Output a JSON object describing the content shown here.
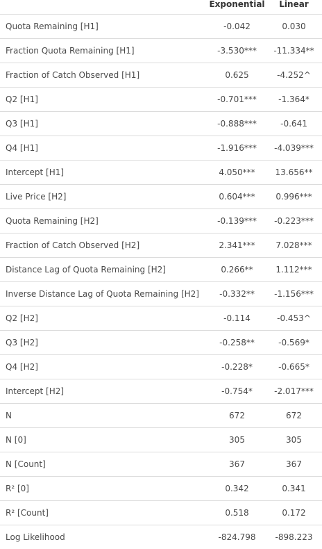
{
  "table": {
    "headers": [
      "",
      "Exponential",
      "Linear"
    ],
    "rows": [
      {
        "label": "Quota Remaining [H1]",
        "exponential": "-0.042",
        "linear": "0.030"
      },
      {
        "label": "Fraction Quota Remaining [H1]",
        "exponential": "-3.530***",
        "linear": "-11.334**"
      },
      {
        "label": "Fraction of Catch Observed [H1]",
        "exponential": "0.625",
        "linear": "-4.252^"
      },
      {
        "label": "Q2 [H1]",
        "exponential": "-0.701***",
        "linear": "-1.364*"
      },
      {
        "label": "Q3 [H1]",
        "exponential": "-0.888***",
        "linear": "-0.641"
      },
      {
        "label": "Q4 [H1]",
        "exponential": "-1.916***",
        "linear": "-4.039***"
      },
      {
        "label": "Intercept [H1]",
        "exponential": "4.050***",
        "linear": "13.656**"
      },
      {
        "label": "Live Price [H2]",
        "exponential": "0.604***",
        "linear": "0.996***"
      },
      {
        "label": "Quota Remaining [H2]",
        "exponential": "-0.139***",
        "linear": "-0.223***"
      },
      {
        "label": "Fraction of Catch Observed [H2]",
        "exponential": "2.341***",
        "linear": "7.028***"
      },
      {
        "label": "Distance Lag of Quota Remaining [H2]",
        "exponential": "0.266**",
        "linear": "1.112***"
      },
      {
        "label": "Inverse Distance Lag of Quota Remaining [H2]",
        "exponential": "-0.332**",
        "linear": "-1.156***"
      },
      {
        "label": "Q2 [H2]",
        "exponential": "-0.114",
        "linear": "-0.453^"
      },
      {
        "label": "Q3 [H2]",
        "exponential": "-0.258**",
        "linear": "-0.569*"
      },
      {
        "label": "Q4 [H2]",
        "exponential": "-0.228*",
        "linear": "-0.665*"
      },
      {
        "label": "Intercept [H2]",
        "exponential": "-0.754*",
        "linear": "-2.017***"
      },
      {
        "label": "N",
        "exponential": "672",
        "linear": "672"
      },
      {
        "label": "N [0]",
        "exponential": "305",
        "linear": "305"
      },
      {
        "label": "N [Count]",
        "exponential": "367",
        "linear": "367"
      },
      {
        "label": "R² [0]",
        "exponential": "0.342",
        "linear": "0.341"
      },
      {
        "label": "R² [Count]",
        "exponential": "0.518",
        "linear": "0.172"
      },
      {
        "label": "Log Likelihood",
        "exponential": "-824.798",
        "linear": "-898.223"
      }
    ]
  },
  "colors": {
    "text": "#4a4a4a",
    "header_text": "#333333",
    "row_border": "#dcdcdc",
    "background": "#ffffff"
  }
}
